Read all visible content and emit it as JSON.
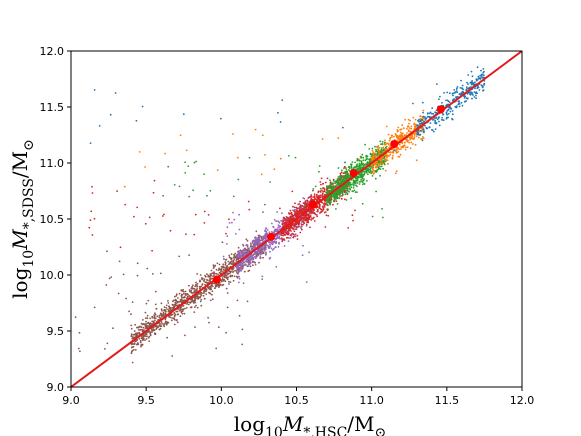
{
  "chart_data": {
    "type": "scatter",
    "title": "",
    "xlabel": "log10 M*,HSC/M⊙",
    "ylabel": "log10 M*,SDSS/M⊙",
    "xlabel_parts": {
      "pre": "log",
      "sub1": "10",
      "sym": "M",
      "sub2": "*,HSC",
      "post": "/M",
      "sub3": "⊙"
    },
    "ylabel_parts": {
      "pre": "log",
      "sub1": "10",
      "sym": "M",
      "sub2": "*,SDSS",
      "post": "/M",
      "sub3": "⊙"
    },
    "xlim": [
      9.0,
      12.0
    ],
    "ylim": [
      9.0,
      12.0
    ],
    "xticks": [
      "9.0",
      "9.5",
      "10.0",
      "10.5",
      "11.0",
      "11.5",
      "12.0"
    ],
    "yticks": [
      "9.0",
      "9.5",
      "10.0",
      "10.5",
      "11.0",
      "11.5",
      "12.0"
    ],
    "grid": false,
    "one_to_one_line": {
      "from": [
        9.0,
        9.0
      ],
      "to": [
        12.0,
        12.0
      ],
      "color": "#e31a1c"
    },
    "groups": [
      {
        "color": "#8c564b",
        "x_range": [
          9.4,
          10.3
        ],
        "outlier_x_range": [
          9.0,
          10.2
        ],
        "count": 1200
      },
      {
        "color": "#9467bd",
        "x_range": [
          10.1,
          10.6
        ],
        "outlier_x_range": [
          10.0,
          10.6
        ],
        "count": 700
      },
      {
        "color": "#d62728",
        "x_range": [
          10.4,
          10.85
        ],
        "outlier_x_range": [
          9.1,
          10.9
        ],
        "count": 900
      },
      {
        "color": "#2ca02c",
        "x_range": [
          10.7,
          11.1
        ],
        "outlier_x_range": [
          9.6,
          11.1
        ],
        "count": 900
      },
      {
        "color": "#ff7f0e",
        "x_range": [
          11.0,
          11.35
        ],
        "outlier_x_range": [
          9.3,
          11.3
        ],
        "count": 450
      },
      {
        "color": "#1f77b4",
        "x_range": [
          11.3,
          11.75
        ],
        "outlier_x_range": [
          9.1,
          11.7
        ],
        "count": 350
      }
    ],
    "medians": {
      "color": "#ff0000",
      "points": [
        {
          "x": 9.97,
          "y": 9.96
        },
        {
          "x": 10.33,
          "y": 10.34
        },
        {
          "x": 10.61,
          "y": 10.63
        },
        {
          "x": 10.88,
          "y": 10.91
        },
        {
          "x": 11.15,
          "y": 11.17
        },
        {
          "x": 11.46,
          "y": 11.48
        }
      ]
    }
  }
}
